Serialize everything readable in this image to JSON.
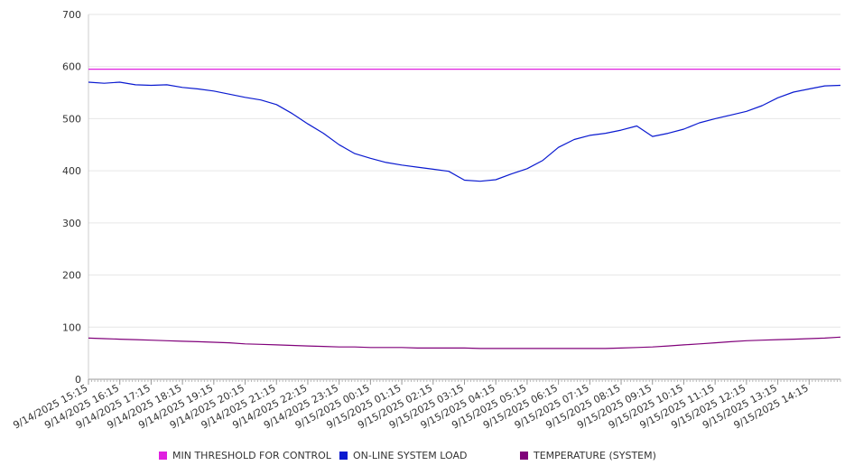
{
  "chart_data": {
    "type": "line",
    "title": "",
    "xlabel": "",
    "ylabel": "",
    "ylim": [
      0,
      700
    ],
    "yticks": [
      0,
      100,
      200,
      300,
      400,
      500,
      600,
      700
    ],
    "grid": true,
    "legend_position": "bottom",
    "x_tick_labels": [
      "9/14/2025 15:15",
      "9/14/2025 16:15",
      "9/14/2025 17:15",
      "9/14/2025 18:15",
      "9/14/2025 19:15",
      "9/14/2025 20:15",
      "9/14/2025 21:15",
      "9/14/2025 22:15",
      "9/14/2025 23:15",
      "9/15/2025 00:15",
      "9/15/2025 01:15",
      "9/15/2025 02:15",
      "9/15/2025 03:15",
      "9/15/2025 04:15",
      "9/15/2025 05:15",
      "9/15/2025 06:15",
      "9/15/2025 07:15",
      "9/15/2025 08:15",
      "9/15/2025 09:15",
      "9/15/2025 10:15",
      "9/15/2025 11:15",
      "9/15/2025 12:15",
      "9/15/2025 13:15",
      "9/15/2025 14:15"
    ],
    "x": [
      "9/14/2025 15:15",
      "9/14/2025 15:45",
      "9/14/2025 16:15",
      "9/14/2025 16:45",
      "9/14/2025 17:15",
      "9/14/2025 17:45",
      "9/14/2025 18:15",
      "9/14/2025 18:45",
      "9/14/2025 19:15",
      "9/14/2025 19:45",
      "9/14/2025 20:15",
      "9/14/2025 20:45",
      "9/14/2025 21:15",
      "9/14/2025 21:45",
      "9/14/2025 22:15",
      "9/14/2025 22:45",
      "9/14/2025 23:15",
      "9/14/2025 23:45",
      "9/15/2025 00:15",
      "9/15/2025 00:45",
      "9/15/2025 01:15",
      "9/15/2025 01:45",
      "9/15/2025 02:15",
      "9/15/2025 02:45",
      "9/15/2025 03:15",
      "9/15/2025 03:45",
      "9/15/2025 04:15",
      "9/15/2025 04:45",
      "9/15/2025 05:15",
      "9/15/2025 05:45",
      "9/15/2025 06:15",
      "9/15/2025 06:45",
      "9/15/2025 07:15",
      "9/15/2025 07:45",
      "9/15/2025 08:15",
      "9/15/2025 08:45",
      "9/15/2025 09:15",
      "9/15/2025 09:45",
      "9/15/2025 10:15",
      "9/15/2025 10:45",
      "9/15/2025 11:15",
      "9/15/2025 11:45",
      "9/15/2025 12:15",
      "9/15/2025 12:45",
      "9/15/2025 13:15",
      "9/15/2025 13:45",
      "9/15/2025 14:15",
      "9/15/2025 14:45",
      "9/15/2025 15:10"
    ],
    "series": [
      {
        "name": "MIN THRESHOLD FOR CONTROL",
        "color": "#e020e0",
        "values": [
          595,
          595,
          595,
          595,
          595,
          595,
          595,
          595,
          595,
          595,
          595,
          595,
          595,
          595,
          595,
          595,
          595,
          595,
          595,
          595,
          595,
          595,
          595,
          595,
          595,
          595,
          595,
          595,
          595,
          595,
          595,
          595,
          595,
          595,
          595,
          595,
          595,
          595,
          595,
          595,
          595,
          595,
          595,
          595,
          595,
          595,
          595,
          595,
          595
        ]
      },
      {
        "name": "ON-LINE SYSTEM LOAD",
        "color": "#0a1ad0",
        "values": [
          570,
          568,
          570,
          565,
          564,
          565,
          560,
          557,
          553,
          547,
          541,
          536,
          527,
          510,
          490,
          472,
          450,
          433,
          424,
          416,
          411,
          407,
          403,
          399,
          382,
          380,
          383,
          394,
          404,
          420,
          445,
          460,
          468,
          472,
          478,
          486,
          466,
          472,
          480,
          492,
          500,
          507,
          514,
          525,
          540,
          551,
          557,
          563,
          564
        ]
      },
      {
        "name": "TEMPERATURE (SYSTEM)",
        "color": "#80007a",
        "values": [
          79,
          78,
          77,
          76,
          75,
          74,
          73,
          72,
          71,
          70,
          68,
          67,
          66,
          65,
          64,
          63,
          62,
          62,
          61,
          61,
          61,
          60,
          60,
          60,
          60,
          59,
          59,
          59,
          59,
          59,
          59,
          59,
          59,
          59,
          60,
          61,
          62,
          64,
          66,
          68,
          70,
          72,
          74,
          75,
          76,
          77,
          78,
          79,
          81
        ]
      }
    ]
  }
}
